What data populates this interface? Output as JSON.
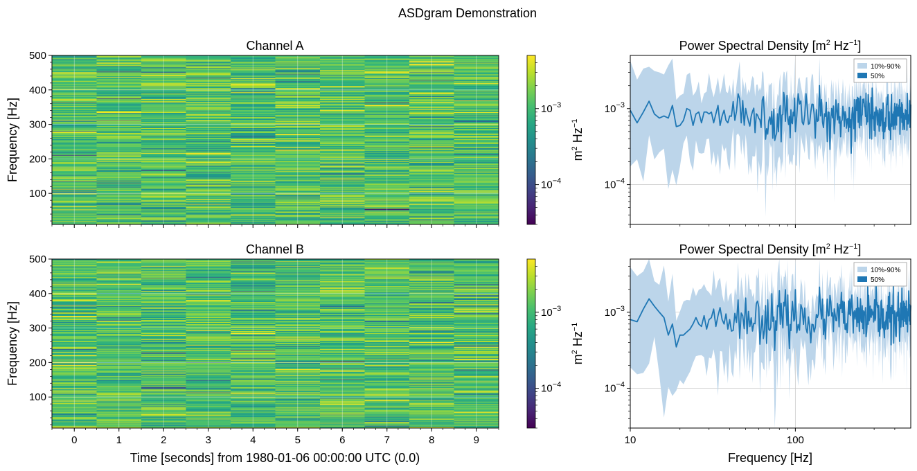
{
  "figure": {
    "suptitle": "ASDgram Demonstration"
  },
  "chart_data": [
    {
      "type": "heatmap",
      "title": "Channel A",
      "ylabel": "Frequency [Hz]",
      "xlabel": "",
      "x_ticks": [
        "0",
        "1",
        "2",
        "3",
        "4",
        "5",
        "6",
        "7",
        "8",
        "9"
      ],
      "y_ticks": [
        "100",
        "200",
        "300",
        "400",
        "500"
      ],
      "x_range": [
        -0.5,
        9.5
      ],
      "ylim": [
        10,
        500
      ],
      "colorbar": {
        "label": "m² Hz⁻¹",
        "label_base": "m",
        "label_mid": " Hz",
        "label_sup1": "2",
        "label_sup2": "−1",
        "scale": "log",
        "range": [
          3e-05,
          0.005
        ],
        "ticks": [
          {
            "base": "10",
            "exp": "−3",
            "value": 0.001
          },
          {
            "base": "10",
            "exp": "−4",
            "value": 0.0001
          }
        ]
      },
      "colormap": "viridis",
      "n_time_bins": 10,
      "n_freq_bins": 245,
      "seed": 17
    },
    {
      "type": "heatmap",
      "title": "Channel B",
      "ylabel": "Frequency [Hz]",
      "xlabel": "Time [seconds] from 1980-01-06 00:00:00 UTC (0.0)",
      "x_ticks": [
        "0",
        "1",
        "2",
        "3",
        "4",
        "5",
        "6",
        "7",
        "8",
        "9"
      ],
      "y_ticks": [
        "100",
        "200",
        "300",
        "400",
        "500"
      ],
      "x_range": [
        -0.5,
        9.5
      ],
      "ylim": [
        10,
        500
      ],
      "colorbar": {
        "label": "m² Hz⁻¹",
        "label_base": "m",
        "label_mid": " Hz",
        "label_sup1": "2",
        "label_sup2": "−1",
        "scale": "log",
        "range": [
          3e-05,
          0.005
        ],
        "ticks": [
          {
            "base": "10",
            "exp": "−3",
            "value": 0.001
          },
          {
            "base": "10",
            "exp": "−4",
            "value": 0.0001
          }
        ]
      },
      "colormap": "viridis",
      "n_time_bins": 10,
      "n_freq_bins": 245,
      "seed": 91
    },
    {
      "type": "area",
      "title": "Power Spectral Density [m² Hz⁻¹]",
      "title_main": "Power Spectral Density [m",
      "title_sup1": "2",
      "title_mid": " Hz",
      "title_sup2": "−1",
      "title_end": "]",
      "xscale": "log",
      "yscale": "log",
      "xlim": [
        10,
        500
      ],
      "ylim": [
        3e-05,
        0.005
      ],
      "x_ticks": [],
      "y_ticks": [
        {
          "base": "10",
          "exp": "−3",
          "value": 0.001
        },
        {
          "base": "10",
          "exp": "−4",
          "value": 0.0001
        }
      ],
      "xlabel": "",
      "series": [
        {
          "name": "10%-90%",
          "kind": "band",
          "color": "#bcd5ea"
        },
        {
          "name": "50%",
          "kind": "line",
          "color": "#1f77b4"
        }
      ],
      "median_low_f": {
        "x": [
          10,
          11,
          12,
          13,
          14,
          15,
          16,
          17,
          18,
          19,
          20,
          21,
          22,
          23,
          24,
          25,
          26,
          27,
          28,
          29,
          30,
          31,
          32,
          33,
          34,
          35,
          36,
          37,
          38,
          39,
          40
        ],
        "y": [
          0.00095,
          0.00065,
          0.0009,
          0.00125,
          0.00085,
          0.00075,
          0.0008,
          0.00075,
          0.0011,
          0.00058,
          0.0006,
          0.0007,
          0.001,
          0.00095,
          0.0006,
          0.00085,
          0.0009,
          0.00065,
          0.0009,
          0.0009,
          0.00085,
          0.0009,
          0.00065,
          0.00085,
          0.0011,
          0.0006,
          0.0008,
          0.00095,
          0.0007,
          0.00065,
          0.0008
        ]
      },
      "seed": 5
    },
    {
      "type": "area",
      "title": "Power Spectral Density [m² Hz⁻¹]",
      "title_main": "Power Spectral Density [m",
      "title_sup1": "2",
      "title_mid": " Hz",
      "title_sup2": "−1",
      "title_end": "]",
      "xscale": "log",
      "yscale": "log",
      "xlim": [
        10,
        500
      ],
      "ylim": [
        3e-05,
        0.005
      ],
      "x_ticks": [
        {
          "label": "10",
          "value": 10
        },
        {
          "label": "100",
          "value": 100
        }
      ],
      "y_ticks": [
        {
          "base": "10",
          "exp": "−3",
          "value": 0.001
        },
        {
          "base": "10",
          "exp": "−4",
          "value": 0.0001
        }
      ],
      "xlabel": "Frequency [Hz]",
      "series": [
        {
          "name": "10%-90%",
          "kind": "band",
          "color": "#bcd5ea"
        },
        {
          "name": "50%",
          "kind": "line",
          "color": "#1f77b4"
        }
      ],
      "median_low_f": {
        "x": [
          10,
          11,
          12,
          13,
          14,
          15,
          16,
          17,
          18,
          19,
          20,
          21,
          22,
          23,
          24,
          25,
          26,
          27,
          28,
          29,
          30,
          31,
          32,
          33,
          34,
          35,
          36,
          37,
          38,
          39,
          40
        ],
        "y": [
          0.0008,
          0.00075,
          0.0011,
          0.0015,
          0.0012,
          0.001,
          0.00085,
          0.0005,
          0.0007,
          0.00035,
          0.0005,
          0.0005,
          0.00055,
          0.0006,
          0.0007,
          0.00085,
          0.0007,
          0.00065,
          0.0009,
          0.0006,
          0.0008,
          0.00085,
          0.0011,
          0.00065,
          0.0009,
          0.00115,
          0.0008,
          0.0007,
          0.00095,
          0.0006,
          0.0008
        ]
      },
      "seed": 23
    }
  ]
}
